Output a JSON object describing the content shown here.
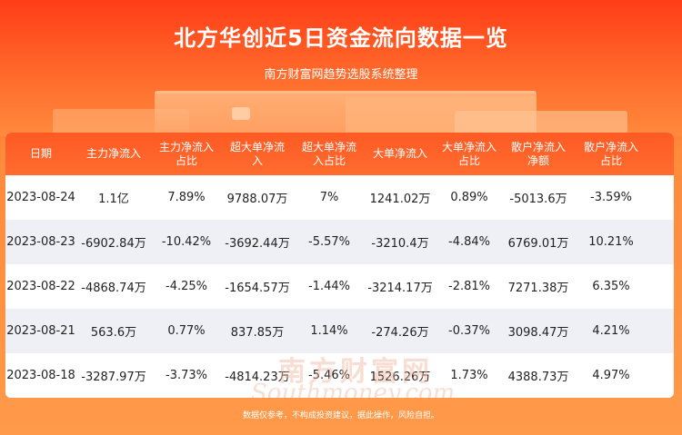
{
  "title": "北方华创近5日资金流向数据一览",
  "subtitle": "南方财富网趋势选股系统整理",
  "watermark": {
    "cn": "南方财富网",
    "en": "Southmoney.com"
  },
  "table": {
    "headers": [
      {
        "line1": "日期",
        "line2": ""
      },
      {
        "line1": "主力净流入",
        "line2": ""
      },
      {
        "line1": "主力净流入",
        "line2": "占比"
      },
      {
        "line1": "超大单净流",
        "line2": "入"
      },
      {
        "line1": "超大单净流",
        "line2": "入占比"
      },
      {
        "line1": "大单净流入",
        "line2": ""
      },
      {
        "line1": "大单净流入",
        "line2": "占比"
      },
      {
        "line1": "散户净流入",
        "line2": "净额"
      },
      {
        "line1": "散户净流入",
        "line2": "占比"
      }
    ],
    "rows": [
      [
        "2023-08-24",
        "1.1亿",
        "7.89%",
        "9788.07万",
        "7%",
        "1241.02万",
        "0.89%",
        "-5013.6万",
        "-3.59%"
      ],
      [
        "2023-08-23",
        "-6902.84万",
        "-10.42%",
        "-3692.44万",
        "-5.57%",
        "-3210.4万",
        "-4.84%",
        "6769.01万",
        "10.21%"
      ],
      [
        "2023-08-22",
        "-4868.74万",
        "-4.25%",
        "-1654.57万",
        "-1.44%",
        "-3214.17万",
        "-2.81%",
        "7271.38万",
        "6.35%"
      ],
      [
        "2023-08-21",
        "563.6万",
        "0.77%",
        "837.85万",
        "1.14%",
        "-274.26万",
        "-0.37%",
        "3098.47万",
        "4.21%"
      ],
      [
        "2023-08-18",
        "-3287.97万",
        "-3.73%",
        "-4814.23万",
        "-5.46%",
        "1526.26万",
        "1.73%",
        "4388.73万",
        "4.97%"
      ]
    ]
  },
  "footer": "数据仅参考，不构成投资建议，据此操作，风险自担。"
}
